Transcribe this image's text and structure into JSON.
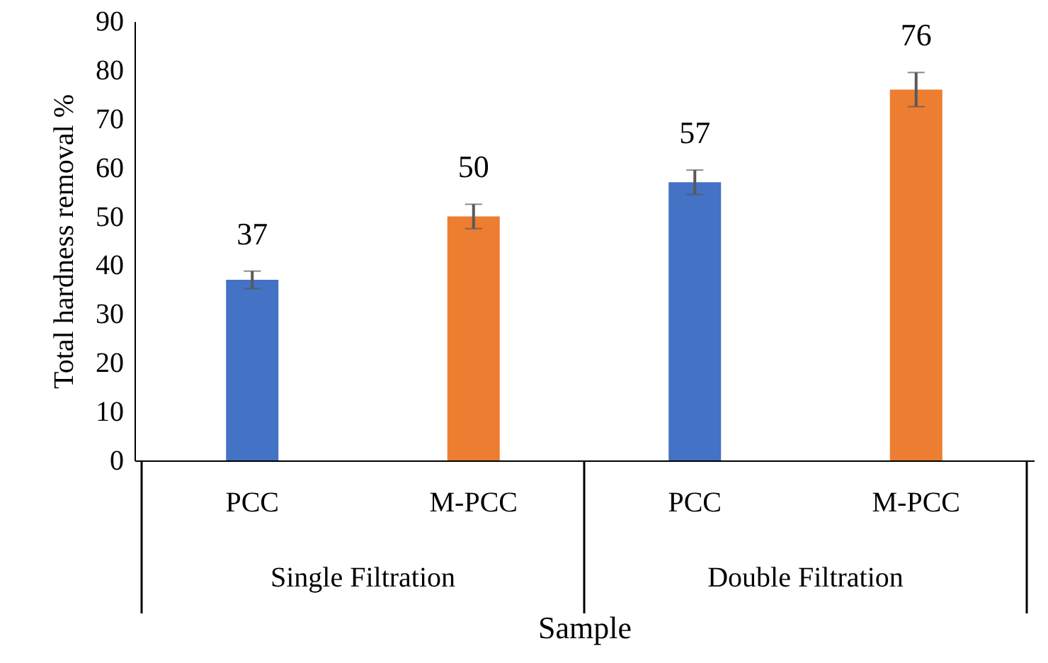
{
  "chart_data": {
    "type": "bar",
    "categories": [
      "PCC",
      "M-PCC",
      "PCC",
      "M-PCC"
    ],
    "values": [
      37,
      50,
      57,
      76
    ],
    "errors": [
      1.8,
      2.5,
      2.5,
      3.5
    ],
    "colors": [
      "#4472c4",
      "#ed7d31",
      "#4472c4",
      "#ed7d31"
    ],
    "data_labels": true,
    "xlabel": "Sample",
    "ylabel": "Total hardness removal %",
    "annotations": [
      "Single Filtration",
      "Double Filtration"
    ],
    "ylim": [
      0,
      90
    ],
    "yticks": [
      0,
      10,
      20,
      30,
      40,
      50,
      60,
      70,
      80,
      90
    ],
    "grid": false
  }
}
